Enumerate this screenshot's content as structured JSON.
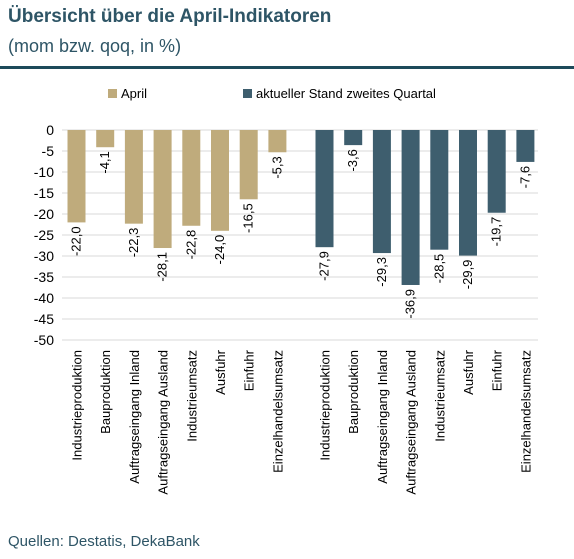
{
  "header": {
    "title": "Übersicht über die April-Indikatoren",
    "subtitle": "(mom bzw. qoq, in %)"
  },
  "footer": {
    "source": "Quellen: Destatis, DekaBank"
  },
  "chart_data": {
    "type": "bar",
    "categories": [
      "Industrieproduktion",
      "Bauproduktion",
      "Auftragseingang Inland",
      "Auftragseingang Ausland",
      "Industrieumsatz",
      "Ausfuhr",
      "Einfuhr",
      "Einzelhandelsumsatz"
    ],
    "series": [
      {
        "name": "April",
        "color": "#bfab7c",
        "values": [
          -22.0,
          -4.1,
          -22.3,
          -28.1,
          -22.8,
          -24.0,
          -16.5,
          -5.3
        ],
        "labels": [
          "-22,0",
          "-4,1",
          "-22,3",
          "-28,1",
          "-22,8",
          "-24,0",
          "-16,5",
          "-5,3"
        ]
      },
      {
        "name": "aktueller Stand zweites Quartal",
        "color": "#3e5e6e",
        "values": [
          -27.9,
          -3.6,
          -29.3,
          -36.9,
          -28.5,
          -29.9,
          -19.7,
          -7.6
        ],
        "labels": [
          "-27,9",
          "-3,6",
          "-29,3",
          "-36,9",
          "-28,5",
          "-29,9",
          "-19,7",
          "-7,6"
        ]
      }
    ],
    "ylim": [
      -50,
      0
    ],
    "yticks": [
      0,
      -5,
      -10,
      -15,
      -20,
      -25,
      -30,
      -35,
      -40,
      -45,
      -50
    ],
    "grid": true,
    "legend": "top"
  }
}
